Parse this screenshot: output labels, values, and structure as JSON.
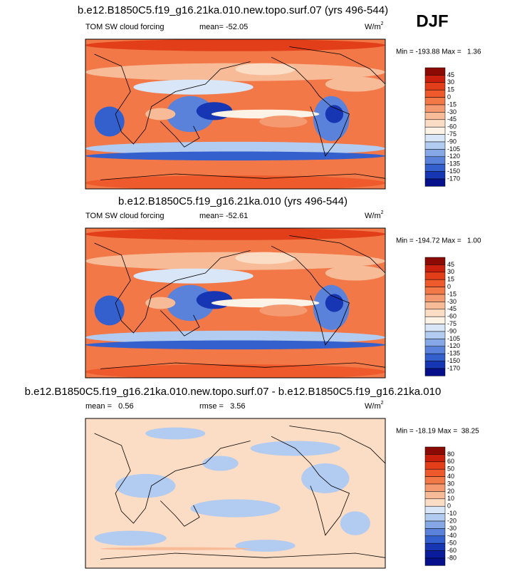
{
  "figure_label": "DJF",
  "panels": [
    {
      "title": "b.e12.B1850C5.f19_g16.21ka.010.new.topo.surf.07 (yrs 496-544)",
      "left": "TOM SW cloud forcing",
      "center": "mean= -52.05",
      "units": {
        "base": "W/m",
        "sup": "2"
      },
      "minmax": "Min = -193.88 Max =   1.36",
      "colorbar": {
        "levels": [
          45,
          30,
          15,
          0,
          -15,
          -30,
          -45,
          -60,
          -75,
          -90,
          -105,
          -120,
          -135,
          -150,
          -170
        ],
        "colors": [
          "#8c0a04",
          "#c8200c",
          "#e23e1a",
          "#ef5a2c",
          "#f27848",
          "#f59a70",
          "#f8bb98",
          "#fbdcc4",
          "#fdf2e6",
          "#d8e6f8",
          "#b2cbf0",
          "#86a8e6",
          "#5a82da",
          "#3360cc",
          "#1636b4",
          "#06108a"
        ]
      }
    },
    {
      "title": "b.e12.B1850C5.f19_g16.21ka.010 (yrs 496-544)",
      "left": "TOM SW cloud forcing",
      "center": "mean= -52.61",
      "units": {
        "base": "W/m",
        "sup": "2"
      },
      "minmax": "Min = -194.72 Max =   1.00",
      "colorbar": {
        "levels": [
          45,
          30,
          15,
          0,
          -15,
          -30,
          -45,
          -60,
          -75,
          -90,
          -105,
          -120,
          -135,
          -150,
          -170
        ],
        "colors": [
          "#8c0a04",
          "#c8200c",
          "#e23e1a",
          "#ef5a2c",
          "#f27848",
          "#f59a70",
          "#f8bb98",
          "#fbdcc4",
          "#fdf2e6",
          "#d8e6f8",
          "#b2cbf0",
          "#86a8e6",
          "#5a82da",
          "#3360cc",
          "#1636b4",
          "#06108a"
        ]
      }
    },
    {
      "title": "b.e12.B1850C5.f19_g16.21ka.010.new.topo.surf.07 - b.e12.B1850C5.f19_g16.21ka.010",
      "left": "mean =   0.56",
      "center": "rmse =   3.56",
      "units": {
        "base": "W/m",
        "sup": "2"
      },
      "minmax": "Min = -18.19 Max =  38.25",
      "colorbar": {
        "levels": [
          80,
          60,
          50,
          40,
          30,
          20,
          10,
          0,
          -10,
          -20,
          -30,
          -40,
          -50,
          -60,
          -80
        ],
        "colors": [
          "#8c0a04",
          "#c8200c",
          "#e23e1a",
          "#ef5a2c",
          "#f27848",
          "#f59a70",
          "#f8bb98",
          "#fbdcc4",
          "#d8e6f8",
          "#b2cbf0",
          "#86a8e6",
          "#5a82da",
          "#3360cc",
          "#1636b4",
          "#0a1c9c",
          "#06108a"
        ]
      }
    }
  ]
}
